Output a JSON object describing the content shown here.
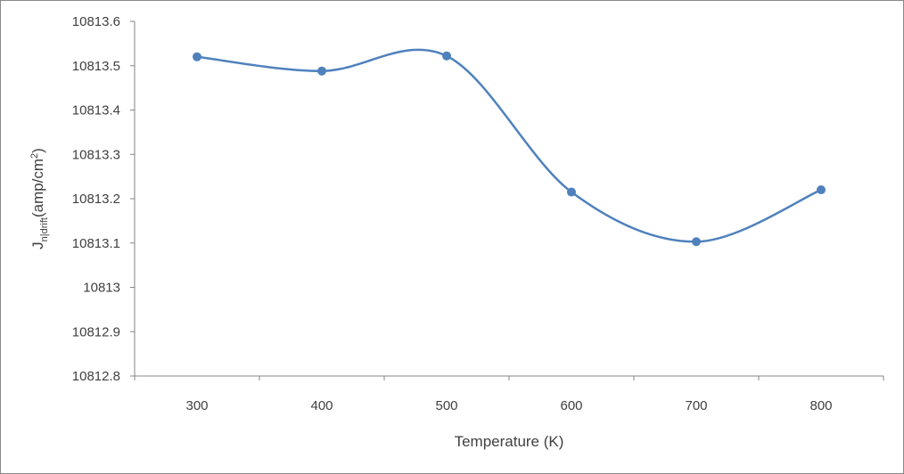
{
  "chart_data": {
    "type": "line",
    "smooth": true,
    "categories": [
      "300",
      "400",
      "500",
      "600",
      "700",
      "800"
    ],
    "series": [
      {
        "values": [
          10813.52,
          10813.488,
          10813.522,
          10813.215,
          10813.103,
          10813.22
        ]
      }
    ],
    "xlabel": "Temperature (K)",
    "ylabel": {
      "main": "J",
      "subscript": "n|drift",
      "unit_prefix": "(amp/cm",
      "superscript": "2",
      "unit_suffix": ")"
    },
    "ylim": [
      10812.8,
      10813.6
    ],
    "ytick_values": [
      10812.8,
      10812.9,
      10813,
      10813.1,
      10813.2,
      10813.3,
      10813.4,
      10813.5,
      10813.6
    ],
    "ytick_labels": [
      "10812.8",
      "10812.9",
      "10813",
      "10813.1",
      "10813.2",
      "10813.3",
      "10813.4",
      "10813.5",
      "10813.6"
    ],
    "grid": false,
    "legend": "none",
    "colors": {
      "series": "#4f81bd",
      "axis": "#868686"
    }
  }
}
